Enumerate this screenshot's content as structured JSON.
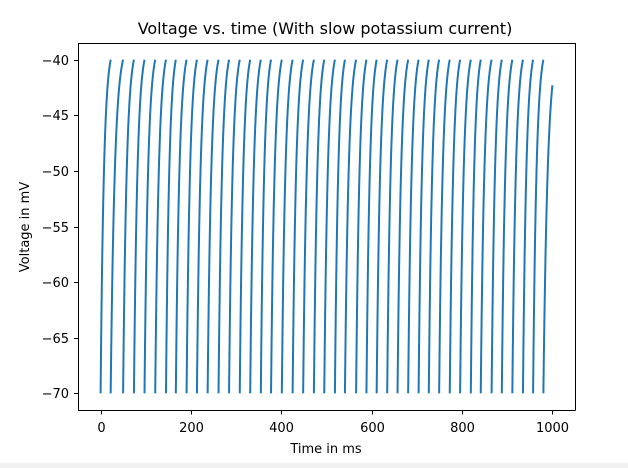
{
  "figure": {
    "background": "#ffffff"
  },
  "chart_data": {
    "type": "line",
    "title": "Voltage vs. time (With slow potassium current)",
    "xlabel": "Time in ms",
    "ylabel": "Voltage in mV",
    "xlim": [
      -50,
      1050
    ],
    "ylim": [
      -71.5,
      -38.5
    ],
    "xticks": [
      0,
      200,
      400,
      600,
      800,
      1000
    ],
    "xtick_labels": [
      "0",
      "200",
      "400",
      "600",
      "800",
      "1000"
    ],
    "yticks": [
      -40,
      -45,
      -50,
      -55,
      -60,
      -65,
      -70
    ],
    "ytick_labels": [
      "−40",
      "−45",
      "−50",
      "−55",
      "−60",
      "−65",
      "−70"
    ],
    "grid": false,
    "legend": "none",
    "line_color": "#1f77b4",
    "series": [
      {
        "reset_value": -70,
        "threshold": -40,
        "spike_times": [
          22.3,
          49.8,
          73.8,
          97.2,
          120.9,
          144.7,
          166.5,
          190.3,
          213.2,
          236.9,
          261.0,
          284.3,
          308.0,
          331.1,
          354.6,
          377.2,
          401.1,
          425.0,
          448.3,
          472.1,
          495.0,
          518.6,
          540.8,
          565.5,
          588.4,
          611.0,
          634.3,
          657.2,
          680.7,
          703.8,
          726.4,
          749.3,
          772.8,
          795.7,
          819.4,
          841.4,
          865.4,
          888.0,
          911.3,
          934.8,
          957.2,
          980.0
        ],
        "end": {
          "t": 1000,
          "v": -42.3
        }
      }
    ]
  }
}
